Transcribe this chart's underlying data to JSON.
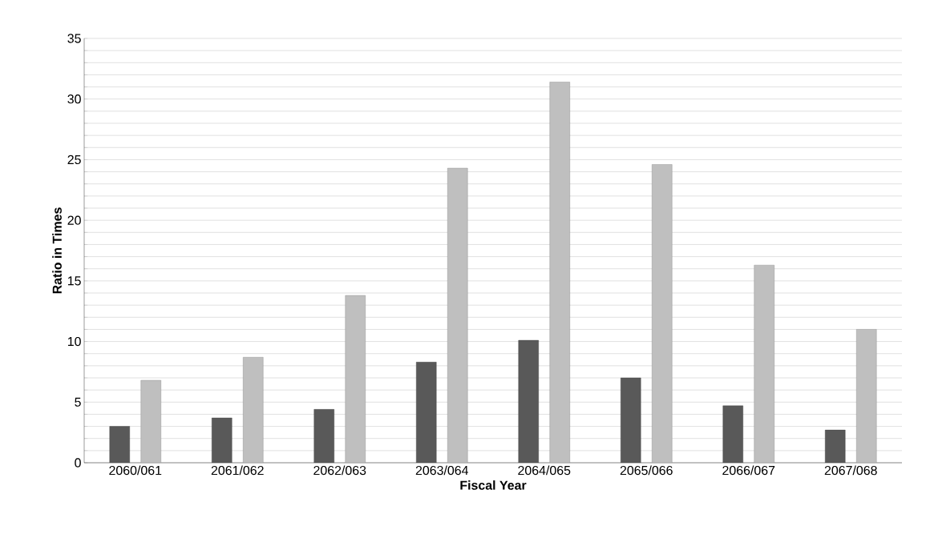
{
  "chart_data": {
    "type": "bar",
    "xlabel": "Fiscal Year",
    "ylabel": "Ratio in Times",
    "categories": [
      "2060/061",
      "2061/062",
      "2062/063",
      "2063/064",
      "2064/065",
      "2065/066",
      "2066/067",
      "2067/068"
    ],
    "series": [
      {
        "color": "#595959",
        "values": [
          3.0,
          3.7,
          4.4,
          8.3,
          10.1,
          7.0,
          4.7,
          2.7
        ]
      },
      {
        "color": "#bfbfbf",
        "values": [
          6.8,
          8.7,
          13.8,
          24.3,
          31.4,
          24.6,
          16.3,
          11.0
        ]
      }
    ],
    "ylim": [
      0,
      35
    ],
    "yticks": [
      0,
      {
        "value": 1,
        "label": null
      },
      {
        "value": 2,
        "label": null
      },
      {
        "value": 3,
        "label": null
      },
      {
        "value": 4,
        "label": null
      },
      5,
      {
        "value": 6,
        "label": null
      },
      {
        "value": 7,
        "label": null
      },
      {
        "value": 8,
        "label": null
      },
      {
        "value": 9,
        "label": null
      },
      10,
      {
        "value": 11,
        "label": null
      },
      {
        "value": 12,
        "label": null
      },
      {
        "value": 13,
        "label": null
      },
      {
        "value": 14,
        "label": null
      },
      15,
      {
        "value": 16,
        "label": null
      },
      {
        "value": 17,
        "label": null
      },
      {
        "value": 18,
        "label": null
      },
      {
        "value": 19,
        "label": null
      },
      20,
      {
        "value": 21,
        "label": null
      },
      {
        "value": 22,
        "label": null
      },
      {
        "value": 23,
        "label": null
      },
      {
        "value": 24,
        "label": null
      },
      25,
      {
        "value": 26,
        "label": null
      },
      {
        "value": 27,
        "label": null
      },
      {
        "value": 28,
        "label": null
      },
      {
        "value": 29,
        "label": null
      },
      30,
      {
        "value": 31,
        "label": null
      },
      {
        "value": 32,
        "label": null
      },
      {
        "value": 33,
        "label": null
      },
      {
        "value": 34,
        "label": null
      },
      35
    ],
    "grid": "y"
  }
}
